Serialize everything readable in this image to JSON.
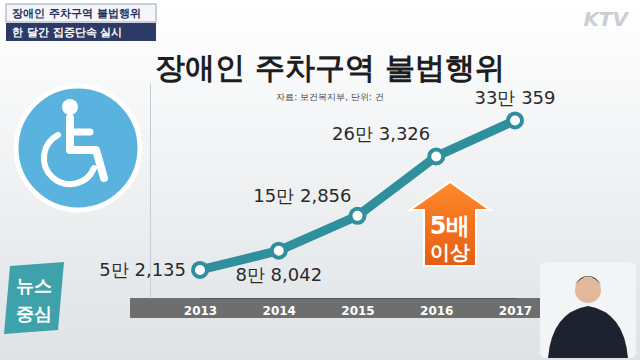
{
  "chart_data": {
    "type": "line",
    "title": "장애인 주차구역 불법행위",
    "subtitle": "자료: 보건복지부, 단위: 건",
    "categories": [
      "2013",
      "2014",
      "2015",
      "2016",
      "2017"
    ],
    "values": [
      52135,
      88042,
      152856,
      263326,
      330359
    ],
    "value_labels": [
      "5만 2,135",
      "8만 8,042",
      "15만 2,856",
      "26만 3,326",
      "33만 359"
    ],
    "data_labels": true,
    "color": "#2f8f9d",
    "marker": "circle",
    "ylim": [
      0,
      400000
    ],
    "tick_labels": "x",
    "annotation": "5배 이상"
  },
  "broadcast": {
    "headline": "장애인 주차구역 불법행위",
    "subheadline": "한 달간 집중단속 실시",
    "channel": "KTV",
    "program": [
      "뉴스",
      "중심"
    ]
  }
}
